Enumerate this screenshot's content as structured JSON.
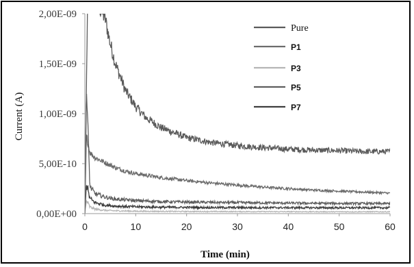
{
  "chart_data": {
    "type": "line",
    "xlabel": "Time (min)",
    "ylabel": "Current (A)",
    "xlim": [
      0,
      60
    ],
    "ylim": [
      0,
      2e-09
    ],
    "x_ticks": [
      0,
      10,
      20,
      30,
      40,
      50,
      60
    ],
    "x_tick_labels": [
      "0",
      "10",
      "20",
      "30",
      "40",
      "50",
      "60"
    ],
    "y_ticks": [
      0,
      5e-10,
      1e-09,
      1.5e-09,
      2e-09
    ],
    "y_tick_labels": [
      "0,00E+00",
      "5,00E-10",
      "1,00E-09",
      "1,50E-09",
      "2,00E-09"
    ],
    "legend_position": "top-right",
    "grid": false,
    "series": [
      {
        "name": "Pure",
        "color": "#5a5a5a",
        "label_style": "serif",
        "x": [
          0,
          0.5,
          1,
          2,
          3,
          4,
          5,
          6,
          8,
          10,
          12,
          15,
          20,
          25,
          30,
          35,
          40,
          45,
          50,
          55,
          60
        ],
        "y": [
          0,
          2e-09,
          2.2e-09,
          2.15e-09,
          2.05e-09,
          1.95e-09,
          1.7e-09,
          1.5e-09,
          1.23e-09,
          1.07e-09,
          9.6e-10,
          8.6e-10,
          7.6e-10,
          7.1e-10,
          6.8e-10,
          6.6e-10,
          6.45e-10,
          6.35e-10,
          6.3e-10,
          6.2e-10,
          6.2e-10
        ]
      },
      {
        "name": "P1",
        "color": "#6c6c6c",
        "label_style": "bold",
        "x": [
          0,
          0.3,
          1,
          2,
          4,
          6,
          8,
          10,
          15,
          20,
          25,
          30,
          35,
          40,
          45,
          50,
          55,
          60
        ],
        "y": [
          0,
          7.8e-10,
          6.1e-10,
          5.6e-10,
          5.1e-10,
          4.6e-10,
          4.25e-10,
          4e-10,
          3.6e-10,
          3.3e-10,
          3.05e-10,
          2.85e-10,
          2.65e-10,
          2.5e-10,
          2.35e-10,
          2.25e-10,
          2.15e-10,
          2.05e-10
        ]
      },
      {
        "name": "P3",
        "color": "#b5b5b5",
        "label_style": "bold",
        "x": [
          0,
          0.3,
          1,
          2,
          4,
          6,
          10,
          20,
          30,
          40,
          50,
          60
        ],
        "y": [
          0,
          1.3e-10,
          6.5e-11,
          4.5e-11,
          3.2e-11,
          2.8e-11,
          2.4e-11,
          2.1e-11,
          2e-11,
          1.9e-11,
          1.8e-11,
          1.8e-11
        ]
      },
      {
        "name": "P5",
        "color": "#5e5e5e",
        "label_style": "bold",
        "x": [
          0,
          0.3,
          1,
          2,
          4,
          6,
          10,
          15,
          20,
          30,
          40,
          50,
          60
        ],
        "y": [
          0,
          1.27e-09,
          2.7e-10,
          2e-10,
          1.65e-10,
          1.45e-10,
          1.3e-10,
          1.2e-10,
          1.15e-10,
          1.1e-10,
          1.05e-10,
          1.02e-10,
          1e-10
        ]
      },
      {
        "name": "P7",
        "color": "#3e3e3e",
        "label_style": "bold",
        "x": [
          0,
          0.3,
          1,
          2,
          4,
          6,
          10,
          15,
          20,
          30,
          40,
          50,
          60
        ],
        "y": [
          0,
          3e-10,
          1.5e-10,
          1.1e-10,
          8.5e-11,
          7.5e-11,
          6.8e-11,
          6.4e-11,
          6.2e-11,
          6e-11,
          5.9e-11,
          5.8e-11,
          5.8e-11
        ]
      }
    ]
  }
}
